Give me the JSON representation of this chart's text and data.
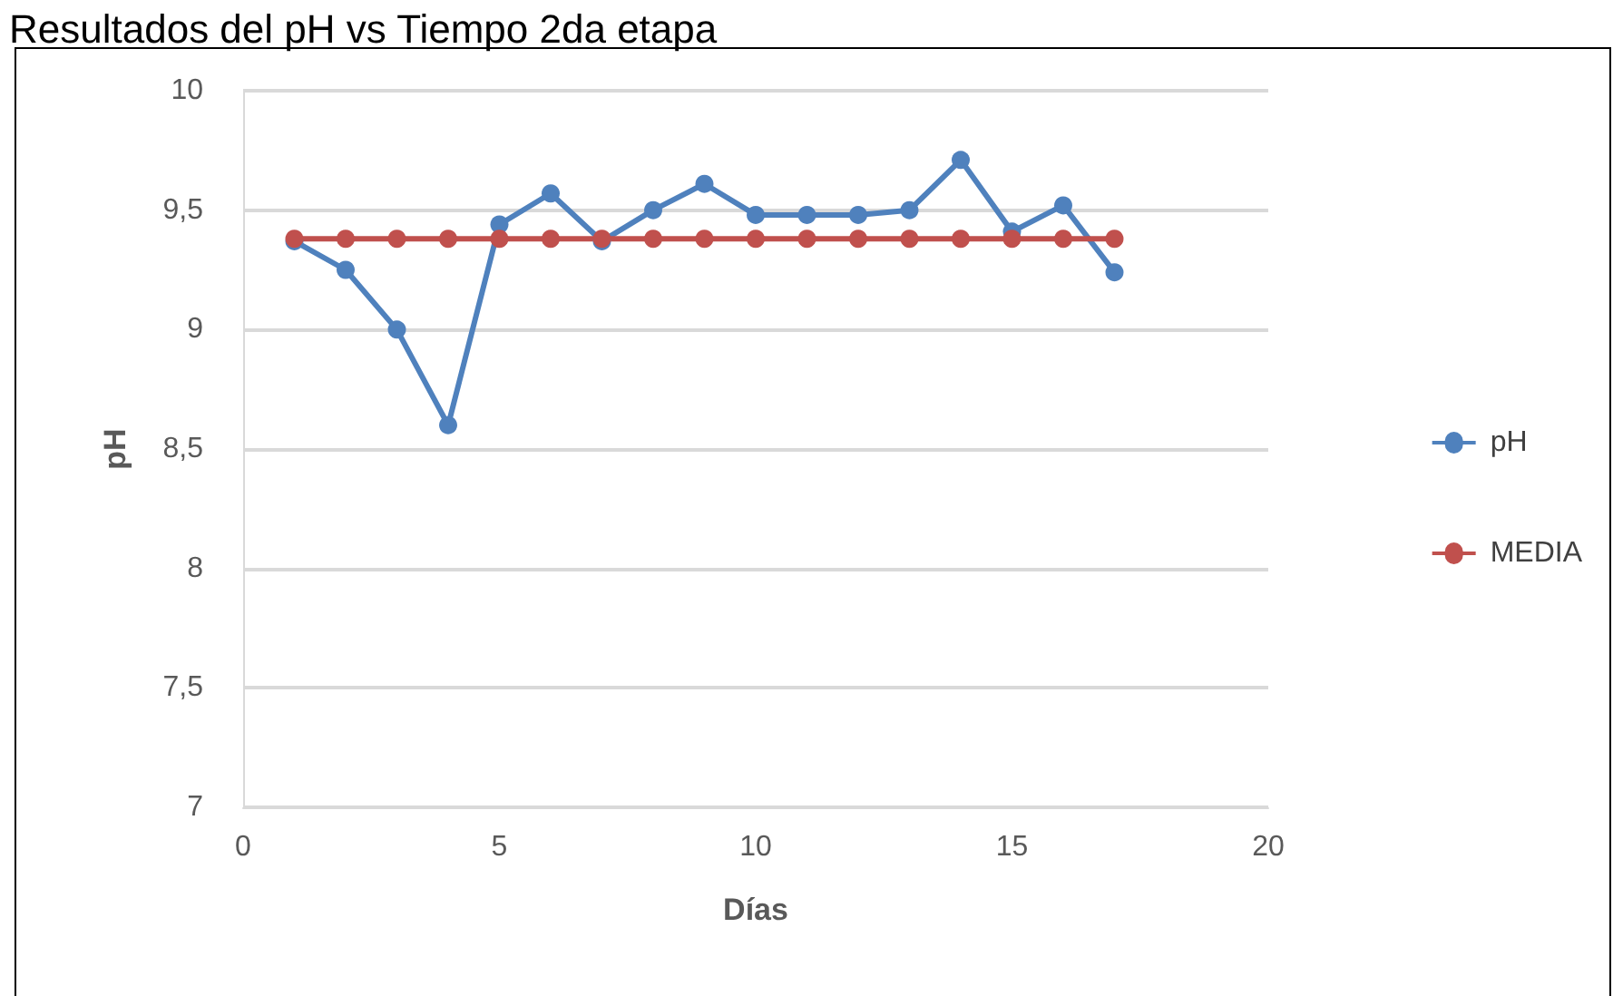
{
  "chart_data": {
    "type": "line",
    "title": "Resultados del pH vs Tiempo 2da etapa",
    "xlabel": "Días",
    "ylabel": "pH",
    "x": [
      1,
      2,
      3,
      4,
      5,
      6,
      7,
      8,
      9,
      10,
      11,
      12,
      13,
      14,
      15,
      16,
      17
    ],
    "series": [
      {
        "name": "pH",
        "color": "#4f81bd",
        "values": [
          9.37,
          9.25,
          9.0,
          8.6,
          9.44,
          9.57,
          9.37,
          9.5,
          9.61,
          9.48,
          9.48,
          9.48,
          9.5,
          9.71,
          9.41,
          9.52,
          9.24
        ]
      },
      {
        "name": "MEDIA",
        "color": "#c0504d",
        "values": [
          9.38,
          9.38,
          9.38,
          9.38,
          9.38,
          9.38,
          9.38,
          9.38,
          9.38,
          9.38,
          9.38,
          9.38,
          9.38,
          9.38,
          9.38,
          9.38,
          9.38
        ]
      }
    ],
    "xlim": [
      0,
      20
    ],
    "xticks": [
      0,
      5,
      10,
      15,
      20
    ],
    "ylim": [
      7,
      10
    ],
    "yticks": [
      7,
      {
        "value": 7.5,
        "label": "7,5"
      },
      8,
      {
        "value": 8.5,
        "label": "8,5"
      },
      9,
      {
        "value": 9.5,
        "label": "9,5"
      },
      10
    ],
    "grid": "y",
    "legend": "right",
    "marker": "circle",
    "line_style": "solid"
  }
}
